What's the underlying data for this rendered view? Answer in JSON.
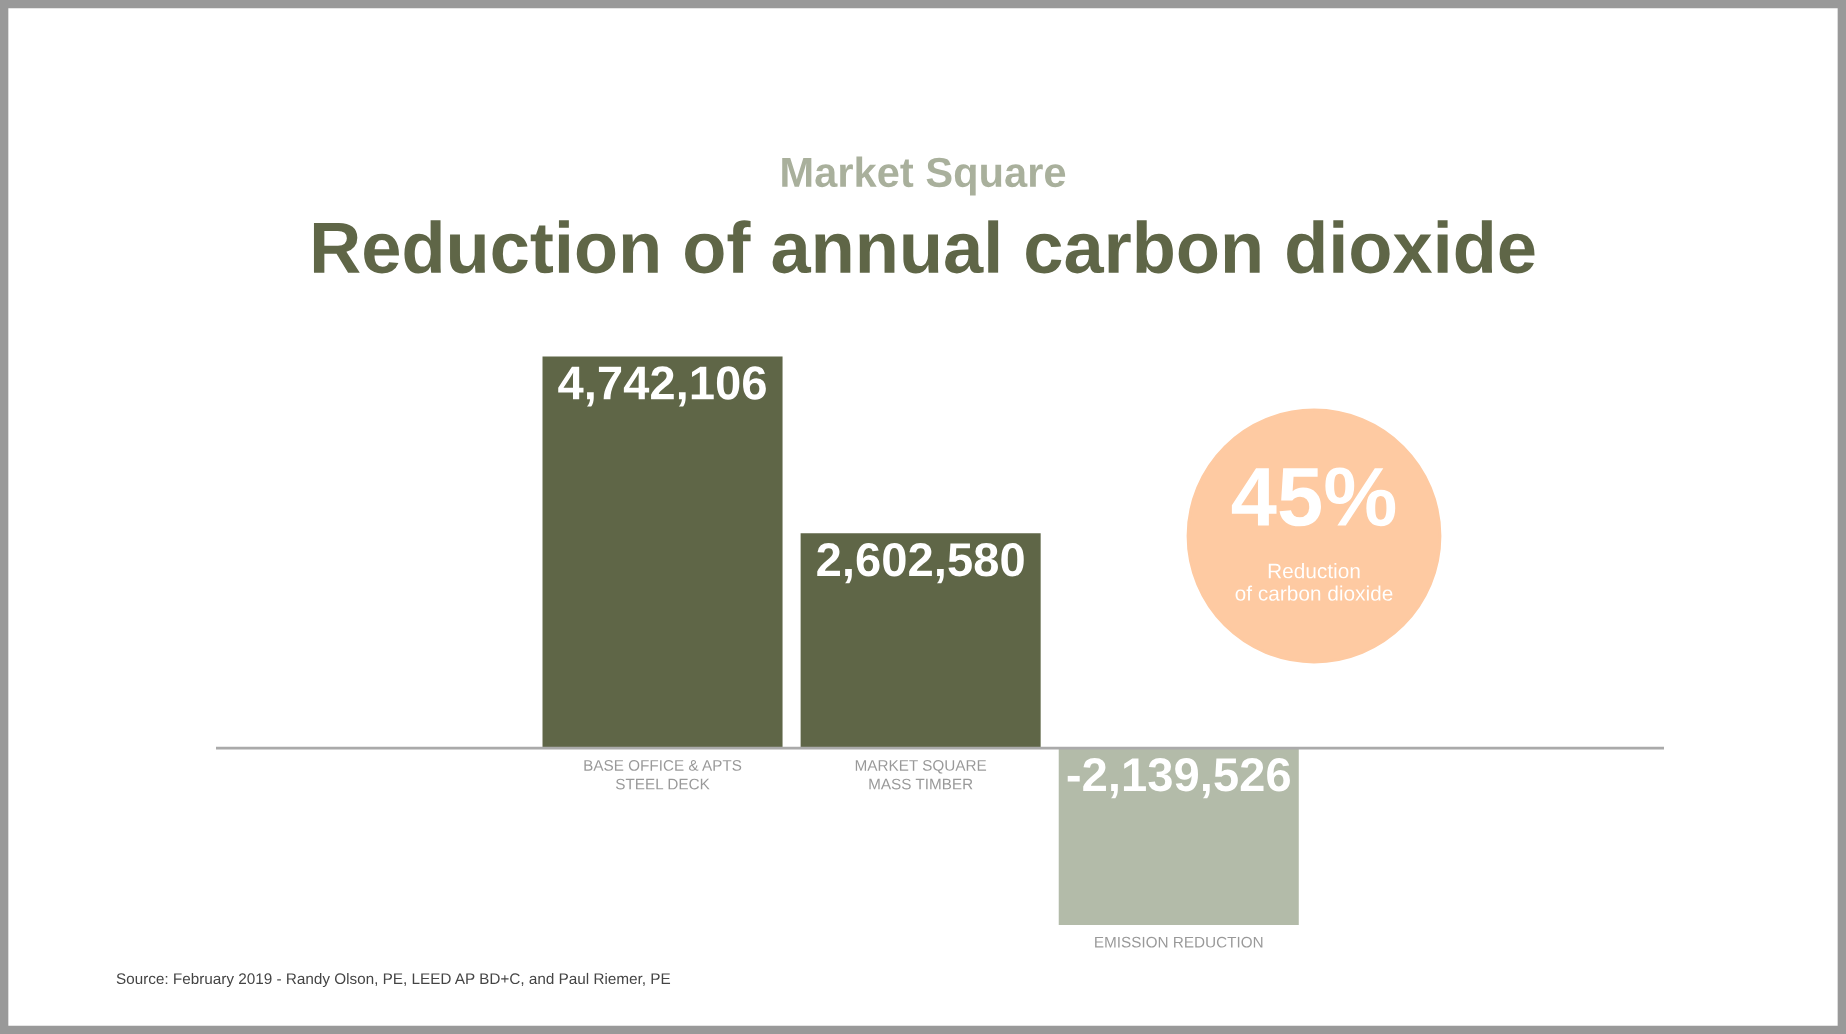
{
  "chart_data": {
    "type": "bar",
    "subtitle": "Market Square",
    "title": "Reduction of annual carbon dioxide",
    "categories": [
      "BASE OFFICE & APTS\nSTEEL DECK",
      "MARKET SQUARE\nMASS TIMBER",
      "EMISSION REDUCTION"
    ],
    "values": [
      4742106,
      2602580,
      -2139526
    ],
    "value_labels": [
      "4,742,106",
      "2,602,580",
      "-2,139,526"
    ],
    "colors": [
      "#5f6647",
      "#5f6647",
      "#b3bba9"
    ],
    "annotations": [
      "45%",
      "Reduction\nof carbon dioxide",
      "Source: February 2019 - Randy Olson, PE, LEED AP BD+C, and Paul Riemer, PE"
    ]
  }
}
